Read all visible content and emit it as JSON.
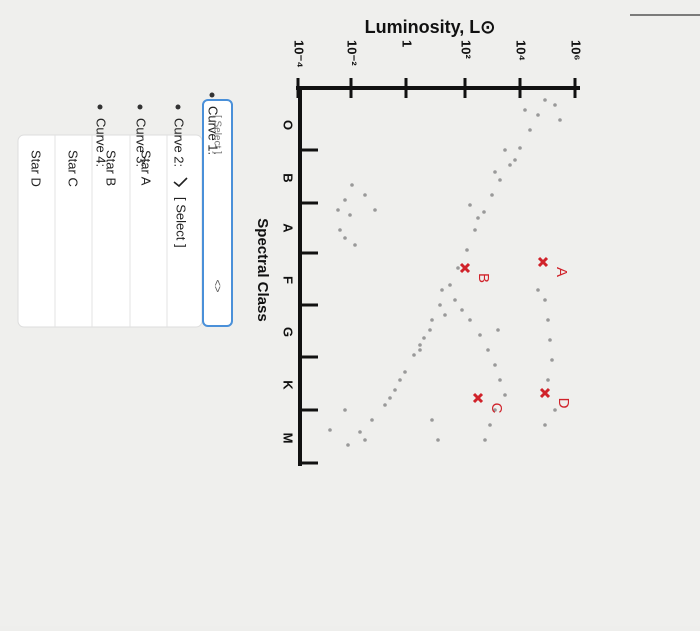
{
  "diagram": {
    "y_title": "Luminosity, L⊙",
    "x_title": "Spectral Class",
    "y_ticks": [
      "10⁶",
      "10⁴",
      "10²",
      "1",
      "10⁻²",
      "10⁻⁴"
    ],
    "x_ticks": [
      "O",
      "B",
      "A",
      "F",
      "G",
      "K",
      "M"
    ],
    "stars": [
      "A",
      "B",
      "C",
      "D"
    ]
  },
  "questions": [
    {
      "label": "Curve 1:",
      "value": "[ Select ]"
    },
    {
      "label": "Curve 2:"
    },
    {
      "label": "Curve 3:"
    },
    {
      "label": "Curve 4:"
    }
  ],
  "dropdown": {
    "options": [
      "[ Select ]",
      "Star A",
      "Star B",
      "Star C",
      "Star D"
    ]
  }
}
